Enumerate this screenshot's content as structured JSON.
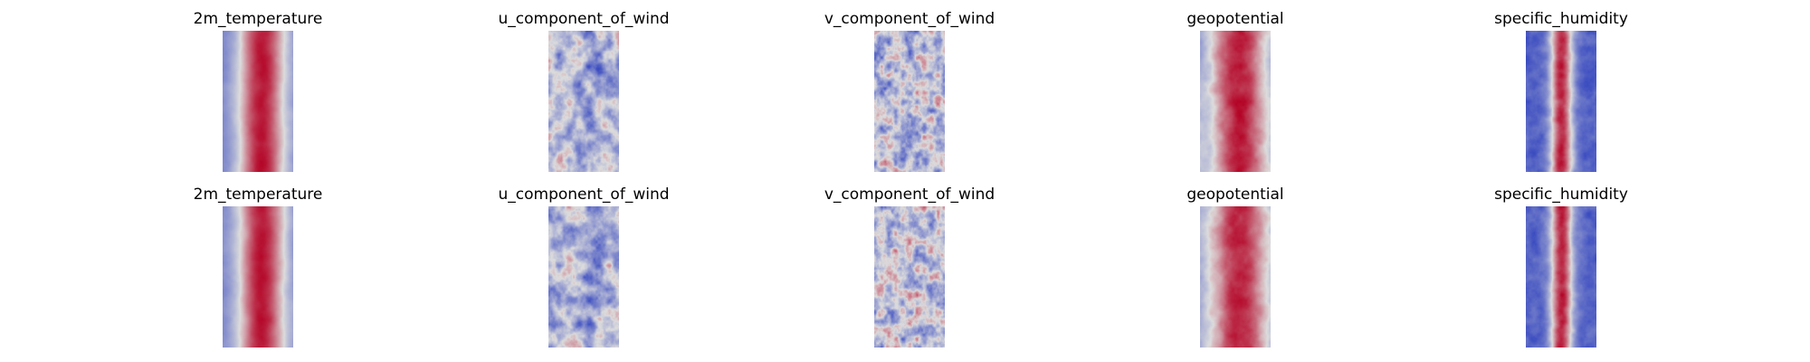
{
  "figure": {
    "rows": [
      {
        "panels": [
          {
            "title": "2m_temperature",
            "variable": "2m_temperature",
            "colormap": "coolwarm"
          },
          {
            "title": "u_component_of_wind",
            "variable": "u_component_of_wind",
            "colormap": "coolwarm"
          },
          {
            "title": "v_component_of_wind",
            "variable": "v_component_of_wind",
            "colormap": "coolwarm"
          },
          {
            "title": "geopotential",
            "variable": "geopotential",
            "colormap": "coolwarm"
          },
          {
            "title": "specific_humidity",
            "variable": "specific_humidity",
            "colormap": "coolwarm"
          }
        ]
      },
      {
        "panels": [
          {
            "title": "2m_temperature",
            "variable": "2m_temperature",
            "colormap": "coolwarm"
          },
          {
            "title": "u_component_of_wind",
            "variable": "u_component_of_wind",
            "colormap": "coolwarm"
          },
          {
            "title": "v_component_of_wind",
            "variable": "v_component_of_wind",
            "colormap": "coolwarm"
          },
          {
            "title": "geopotential",
            "variable": "geopotential",
            "colormap": "coolwarm"
          },
          {
            "title": "specific_humidity",
            "variable": "specific_humidity",
            "colormap": "coolwarm"
          }
        ]
      }
    ],
    "colors": {
      "cold": "#3b4cc0",
      "neutral": "#dddddd",
      "warm": "#b40426"
    }
  }
}
